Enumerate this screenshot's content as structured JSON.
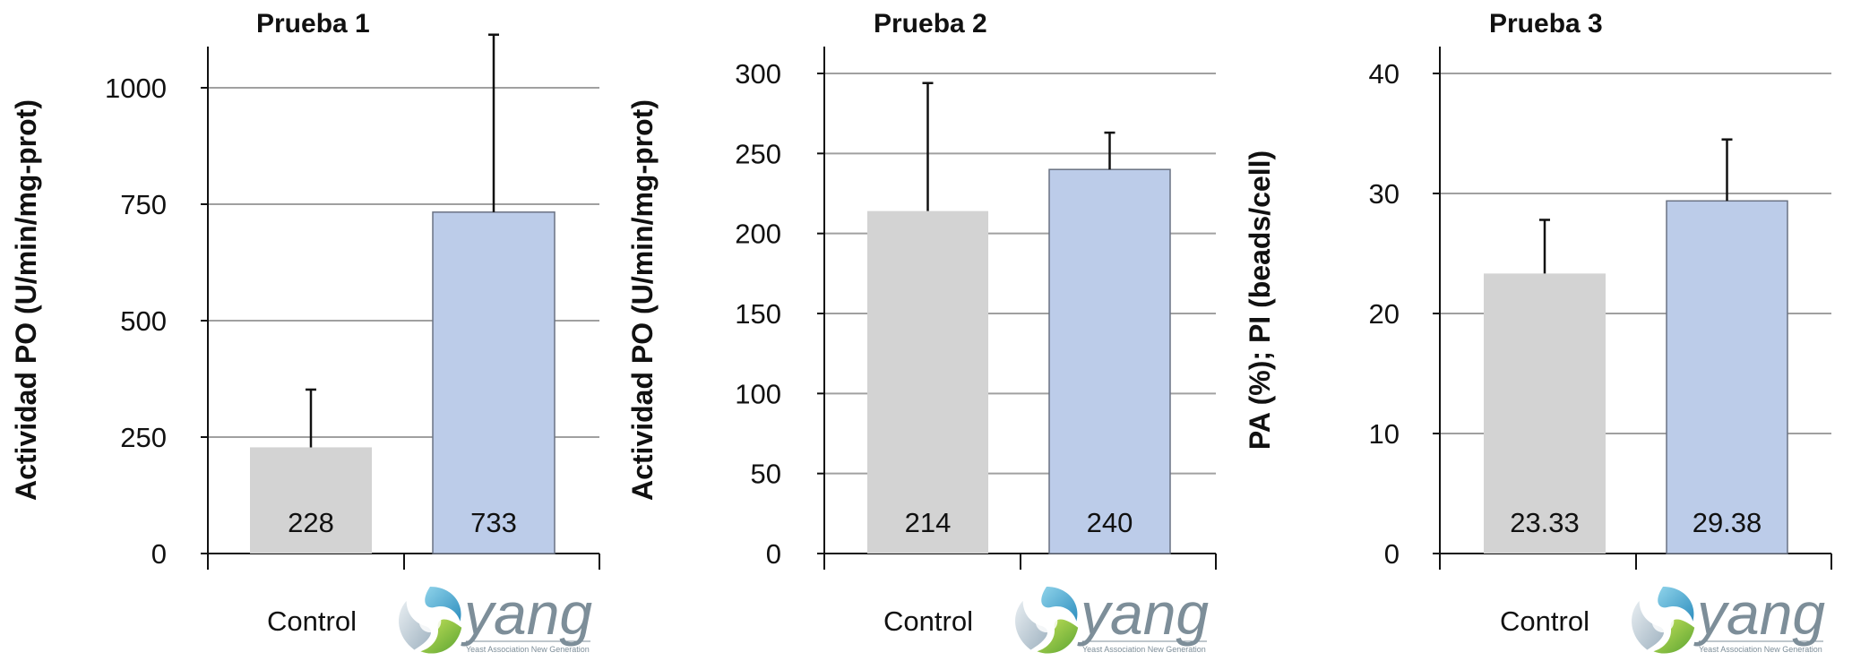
{
  "colors": {
    "control": "#d3d3d3",
    "yang": "#bccce9",
    "grid": "#a0a0a0",
    "axis": "#111111",
    "error": "#111111"
  },
  "logo": {
    "name": "yang",
    "tagline": "Yeast Association New Generation",
    "icon": "yang-swirl-icon"
  },
  "chart_data": [
    {
      "type": "bar",
      "title": "Prueba 1",
      "ylabel": "Actividad PO (U/min/mg-prot)",
      "ylim": [
        0,
        1000
      ],
      "yticks": [
        0,
        250,
        500,
        750,
        1000
      ],
      "categories": [
        "Control",
        "yang"
      ],
      "values": [
        228,
        733
      ],
      "data_labels": [
        "228",
        "733"
      ],
      "error_upper": [
        352,
        1114
      ],
      "grid": true
    },
    {
      "type": "bar",
      "title": "Prueba 2",
      "ylabel": "Actividad PO (U/min/mg-prot)",
      "ylim": [
        0,
        300
      ],
      "yticks": [
        0,
        50,
        100,
        150,
        200,
        250,
        300
      ],
      "categories": [
        "Control",
        "yang"
      ],
      "values": [
        214,
        240
      ],
      "data_labels": [
        "214",
        "240"
      ],
      "error_upper": [
        294,
        263
      ],
      "grid": true
    },
    {
      "type": "bar",
      "title": "Prueba 3",
      "ylabel": "PA (%); PI (beads/cell)",
      "ylim": [
        0,
        40
      ],
      "yticks": [
        0,
        10,
        20,
        30,
        40
      ],
      "categories": [
        "Control",
        "yang"
      ],
      "values": [
        23.33,
        29.38
      ],
      "data_labels": [
        "23.33",
        "29.38"
      ],
      "error_upper": [
        27.8,
        34.5
      ],
      "grid": true
    }
  ]
}
